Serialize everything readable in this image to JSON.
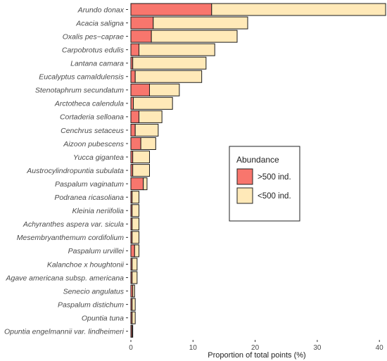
{
  "chart_data": {
    "type": "bar",
    "orientation": "horizontal",
    "stacked": true,
    "categories": [
      "Arundo donax",
      "Acacia saligna",
      "Oxalis pes−caprae",
      "Carpobrotus edulis",
      "Lantana camara",
      "Eucalyptus camaldulensis",
      "Stenotaphrum secundatum",
      "Arctotheca calendula",
      "Cortaderia selloana",
      "Cenchrus setaceus",
      "Aizoon pubescens",
      "Yucca gigantea",
      "Austrocylindropuntia subulata",
      "Paspalum vaginatum",
      "Podranea ricasoliana",
      "Kleinia neriifolia",
      "Achyranthes aspera var. sicula",
      "Mesembryanthemum cordifolium",
      "Paspalum urvillei",
      "Kalanchoe x houghtonii",
      "Agave americana subsp. americana",
      "Senecio angulatus",
      "Paspalum distichum",
      "Opuntia tuna",
      "Opuntia engelmannii var. lindheimeri"
    ],
    "series": [
      {
        "name": ">500 ind.",
        "color": "#f8766d",
        "values": [
          13.0,
          3.6,
          3.3,
          1.3,
          0.3,
          0.7,
          3.0,
          0.4,
          1.3,
          0.7,
          1.6,
          0.3,
          0.3,
          2.0,
          0.2,
          0.2,
          0.2,
          0.2,
          0.6,
          0.2,
          0.2,
          0.3,
          0.2,
          0.2,
          0.2
        ]
      },
      {
        "name": "<500 ind.",
        "color": "#ffe9b8",
        "values": [
          28.0,
          15.2,
          13.8,
          12.2,
          11.8,
          10.7,
          4.8,
          6.3,
          3.7,
          3.7,
          2.4,
          2.7,
          2.7,
          0.6,
          1.1,
          1.1,
          1.1,
          1.1,
          0.7,
          0.8,
          0.8,
          0.3,
          0.5,
          0.5,
          0.1
        ]
      }
    ],
    "xlabel": "Proportion of total points (%)",
    "ylabel": "",
    "xlim": [
      0,
      41
    ],
    "xticks": [
      0,
      10,
      20,
      30,
      40
    ],
    "grid": false,
    "legend": {
      "title": "Abundance",
      "position": "right-center",
      "entries": [
        ">500 ind.",
        "<500 ind."
      ]
    }
  }
}
